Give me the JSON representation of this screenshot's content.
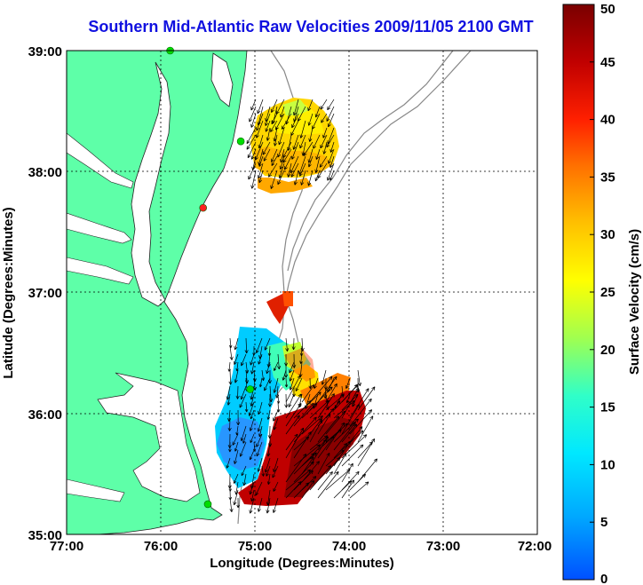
{
  "title": "Southern Mid-Atlantic Raw Velocities 2009/11/05 2100 GMT",
  "x_axis": {
    "label": "Longitude (Degrees:Minutes)",
    "ticks": [
      "77:00",
      "76:00",
      "75:00",
      "74:00",
      "73:00",
      "72:00"
    ]
  },
  "y_axis": {
    "label": "Latitude (Degrees:Minutes)",
    "ticks": [
      "39:00",
      "38:00",
      "37:00",
      "36:00",
      "35:00"
    ]
  },
  "colorbar": {
    "label": "Surface Velocity (cm/s)",
    "ticks": [
      "0",
      "5",
      "10",
      "15",
      "20",
      "25",
      "30",
      "35",
      "40",
      "45",
      "50"
    ],
    "min": 0,
    "max": 50,
    "colormap": [
      "#0050ff",
      "#00c8ff",
      "#20ffd8",
      "#c0ff30",
      "#ffff00",
      "#ffb000",
      "#ff6000",
      "#ff1000",
      "#c00000",
      "#800000"
    ]
  },
  "colors": {
    "land": "#5effa8",
    "station": "#00dd00",
    "station_offline": "#ff2020",
    "grid": "#000000",
    "title": "#1010e0"
  },
  "map_extent": {
    "lon_range": [
      -77,
      -72
    ],
    "lat_range": [
      35,
      39
    ]
  },
  "stations": [
    {
      "lon": -75.9,
      "lat": 39.0,
      "status": "online"
    },
    {
      "lon": -75.15,
      "lat": 38.25,
      "status": "online"
    },
    {
      "lon": -75.55,
      "lat": 37.7,
      "status": "offline"
    },
    {
      "lon": -75.05,
      "lat": 36.2,
      "status": "online"
    },
    {
      "lon": -75.5,
      "lat": 35.25,
      "status": "online"
    }
  ]
}
